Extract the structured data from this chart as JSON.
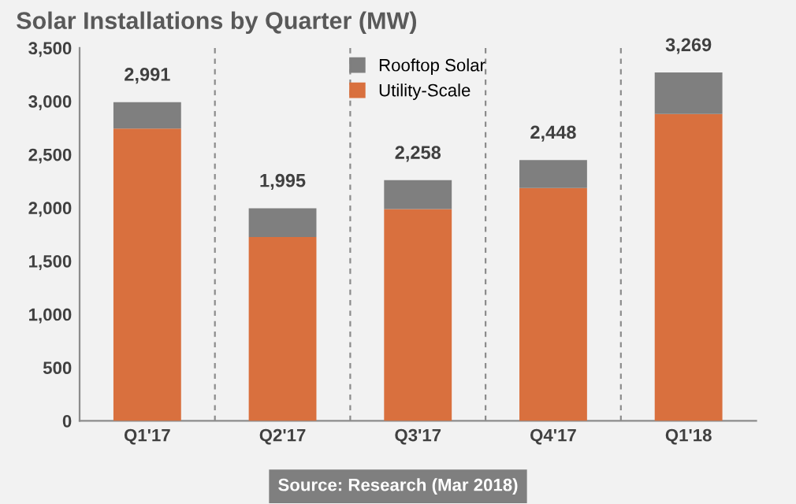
{
  "chart_data": {
    "type": "bar",
    "title": "Solar Installations by Quarter (MW)",
    "categories": [
      "Q1'17",
      "Q2'17",
      "Q3'17",
      "Q4'17",
      "Q1'18"
    ],
    "stacked": true,
    "series": [
      {
        "name": "Utility-Scale",
        "color": "#d9703e",
        "values": [
          2743,
          1725,
          1987,
          2184,
          2880
        ]
      },
      {
        "name": "Rooftop Solar",
        "color": "#7f7f7f",
        "values": [
          248,
          270,
          271,
          264,
          389
        ]
      }
    ],
    "totals": [
      "2,991",
      "1,995",
      "2,258",
      "2,448",
      "3,269"
    ],
    "ylim": [
      0,
      3500
    ],
    "yticks": [
      {
        "value": 0,
        "label": "0"
      },
      {
        "value": 500,
        "label": "500"
      },
      {
        "value": 1000,
        "label": "1,000"
      },
      {
        "value": 1500,
        "label": "1,500"
      },
      {
        "value": 2000,
        "label": "2,000"
      },
      {
        "value": 2500,
        "label": "2,500"
      },
      {
        "value": 3000,
        "label": "3,000"
      },
      {
        "value": 3500,
        "label": "3,500"
      }
    ],
    "grid": "x",
    "legend": "top",
    "annotations": [
      "Source: Research (Mar 2018)"
    ]
  }
}
